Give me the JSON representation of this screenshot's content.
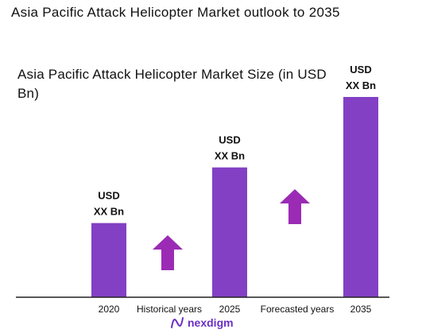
{
  "title": "Asia Pacific Attack Helicopter Market outlook to 2035",
  "colors": {
    "bar": "#8340c4",
    "arrow": "#9b2bb5",
    "axis": "#222222",
    "logo": "#6b2fc4"
  },
  "chart_data": {
    "type": "bar",
    "title": "Asia Pacific Attack Helicopter Market Size (in USD Bn)",
    "categories": [
      "2020",
      "2025",
      "2035"
    ],
    "values": [
      1.0,
      1.75,
      2.7
    ],
    "value_labels": [
      [
        "USD",
        "XX Bn"
      ],
      [
        "USD",
        "XX Bn"
      ],
      [
        "USD",
        "XX Bn"
      ]
    ],
    "period_labels": [
      "Historical years",
      "Forecasted years"
    ],
    "ylim": [
      0,
      2.7
    ],
    "grid": false
  },
  "logo": {
    "text": "nexdigm",
    "icon": "nexdigm-logo-icon"
  }
}
